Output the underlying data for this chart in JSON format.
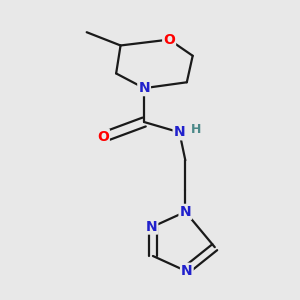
{
  "background_color": "#e8e8e8",
  "bond_color": "#1a1a1a",
  "atom_colors": {
    "O": "#ff0000",
    "N": "#2020cc",
    "N_H": "#4a8888",
    "C": "#1a1a1a"
  },
  "figsize": [
    3.0,
    3.0
  ],
  "dpi": 100
}
